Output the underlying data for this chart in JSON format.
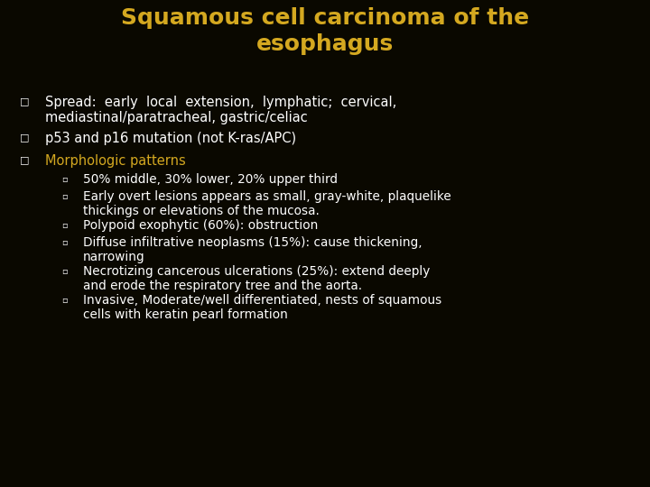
{
  "title_line1": "Squamous cell carcinoma of the",
  "title_line2": "esophagus",
  "title_color": "#D4A820",
  "bg_color": "#0a0800",
  "text_color": "#FFFFFF",
  "highlight_color": "#D4A820",
  "title_fontsize": 18,
  "body_fontsize": 10.5,
  "sub_fontsize": 9.8,
  "lines": [
    {
      "level": 1,
      "text": "Spread:  early  local  extension,  lymphatic;  cervical,\nmediastinal/paratracheal, gastric/celiac",
      "color": "#FFFFFF"
    },
    {
      "level": 1,
      "text": "p53 and p16 mutation (not K-ras/APC)",
      "color": "#FFFFFF"
    },
    {
      "level": 1,
      "text": "Morphologic patterns",
      "color": "#D4A820"
    },
    {
      "level": 2,
      "text": "50% middle, 30% lower, 20% upper third",
      "color": "#FFFFFF"
    },
    {
      "level": 2,
      "text": "Early overt lesions appears as small, gray-white, plaquelike\nthickings or elevations of the mucosa.",
      "color": "#FFFFFF"
    },
    {
      "level": 2,
      "text": "Polypoid exophytic (60%): obstruction",
      "color": "#FFFFFF"
    },
    {
      "level": 2,
      "text": "Diffuse infiltrative neoplasms (15%): cause thickening,\nnarrowing",
      "color": "#FFFFFF"
    },
    {
      "level": 2,
      "text": "Necrotizing cancerous ulcerations (25%): extend deeply\nand erode the respiratory tree and the aorta.",
      "color": "#FFFFFF"
    },
    {
      "level": 2,
      "text": "Invasive, Moderate/well differentiated, nests of squamous\ncells with keratin pearl formation",
      "color": "#FFFFFF"
    }
  ]
}
